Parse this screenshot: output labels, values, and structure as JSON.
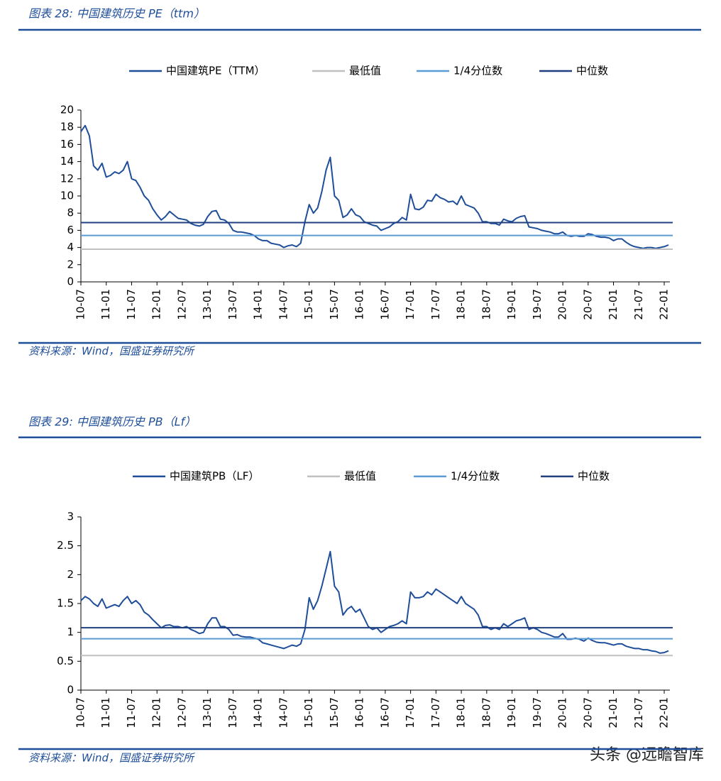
{
  "chart_data": [
    {
      "type": "line",
      "title": "图表 28:  中国建筑历史 PE（ttm）",
      "source": "资料来源：Wind，国盛证券研究所",
      "ylim": [
        0,
        20
      ],
      "yticks": [
        0,
        2,
        4,
        6,
        8,
        10,
        12,
        14,
        16,
        18,
        20
      ],
      "grid": false,
      "legend": "top",
      "x": [
        "10-07",
        "10-08",
        "10-09",
        "10-10",
        "10-11",
        "10-12",
        "11-01",
        "11-02",
        "11-03",
        "11-04",
        "11-05",
        "11-06",
        "11-07",
        "11-08",
        "11-09",
        "11-10",
        "11-11",
        "11-12",
        "12-01",
        "12-02",
        "12-03",
        "12-04",
        "12-05",
        "12-06",
        "12-07",
        "12-08",
        "12-09",
        "12-10",
        "12-11",
        "12-12",
        "13-01",
        "13-02",
        "13-03",
        "13-04",
        "13-05",
        "13-06",
        "13-07",
        "13-08",
        "13-09",
        "13-10",
        "13-11",
        "13-12",
        "14-01",
        "14-02",
        "14-03",
        "14-04",
        "14-05",
        "14-06",
        "14-07",
        "14-08",
        "14-09",
        "14-10",
        "14-11",
        "14-12",
        "15-01",
        "15-02",
        "15-03",
        "15-04",
        "15-05",
        "15-06",
        "15-07",
        "15-08",
        "15-09",
        "15-10",
        "15-11",
        "15-12",
        "16-01",
        "16-02",
        "16-03",
        "16-04",
        "16-05",
        "16-06",
        "16-07",
        "16-08",
        "16-09",
        "16-10",
        "16-11",
        "16-12",
        "17-01",
        "17-02",
        "17-03",
        "17-04",
        "17-05",
        "17-06",
        "17-07",
        "17-08",
        "17-09",
        "17-10",
        "17-11",
        "17-12",
        "18-01",
        "18-02",
        "18-03",
        "18-04",
        "18-05",
        "18-06",
        "18-07",
        "18-08",
        "18-09",
        "18-10",
        "18-11",
        "18-12",
        "19-01",
        "19-02",
        "19-03",
        "19-04",
        "19-05",
        "19-06",
        "19-07",
        "19-08",
        "19-09",
        "19-10",
        "19-11",
        "19-12",
        "20-01",
        "20-02",
        "20-03",
        "20-04",
        "20-05",
        "20-06",
        "20-07",
        "20-08",
        "20-09",
        "20-10",
        "20-11",
        "20-12",
        "21-01",
        "21-02",
        "21-03",
        "21-04",
        "21-05",
        "21-06",
        "21-07",
        "21-08",
        "21-09",
        "21-10",
        "21-11",
        "21-12",
        "22-01",
        "22-02"
      ],
      "series": [
        {
          "name": "中国建筑PE（TTM）",
          "color": "#1f4e99",
          "values": [
            17.5,
            18.2,
            17.0,
            13.5,
            13.0,
            13.8,
            12.2,
            12.4,
            12.8,
            12.6,
            13.0,
            14.0,
            12.0,
            11.8,
            11.0,
            10.0,
            9.5,
            8.5,
            7.8,
            7.2,
            7.6,
            8.2,
            7.8,
            7.4,
            7.3,
            7.2,
            6.8,
            6.6,
            6.5,
            6.7,
            7.6,
            8.2,
            8.3,
            7.3,
            7.2,
            6.8,
            6.0,
            5.8,
            5.8,
            5.7,
            5.6,
            5.4,
            5.0,
            4.8,
            4.8,
            4.5,
            4.4,
            4.3,
            4.0,
            4.2,
            4.3,
            4.1,
            4.5,
            7.0,
            9.0,
            8.0,
            8.6,
            10.5,
            13.0,
            14.5,
            10.0,
            9.5,
            7.5,
            7.8,
            8.5,
            7.8,
            7.6,
            7.0,
            6.8,
            6.6,
            6.5,
            6.0,
            6.2,
            6.4,
            6.8,
            7.0,
            7.5,
            7.2,
            10.2,
            8.5,
            8.4,
            8.7,
            9.5,
            9.4,
            10.2,
            9.8,
            9.6,
            9.3,
            9.4,
            9.0,
            10.0,
            9.0,
            8.8,
            8.6,
            8.0,
            7.0,
            7.0,
            6.8,
            6.8,
            6.6,
            7.3,
            7.1,
            7.0,
            7.4,
            7.6,
            7.7,
            6.4,
            6.3,
            6.2,
            6.0,
            5.9,
            5.8,
            5.6,
            5.6,
            5.8,
            5.4,
            5.3,
            5.4,
            5.3,
            5.3,
            5.6,
            5.5,
            5.3,
            5.2,
            5.2,
            5.1,
            4.8,
            5.0,
            5.0,
            4.6,
            4.3,
            4.1,
            4.0,
            3.9,
            4.0,
            4.0,
            3.9,
            4.0,
            4.1,
            4.3
          ]
        },
        {
          "name": "最低值",
          "color": "#c0c0c0",
          "value": 3.8
        },
        {
          "name": "1/4分位数",
          "color": "#5b9bd5",
          "value": 5.4
        },
        {
          "name": "中位数",
          "color": "#1f3f7f",
          "value": 6.9
        }
      ]
    },
    {
      "type": "line",
      "title": "图表 29:  中国建筑历史 PB（Lf）",
      "source": "资料来源：Wind，国盛证券研究所",
      "ylim": [
        0,
        3
      ],
      "yticks": [
        0,
        0.5,
        1,
        1.5,
        2,
        2.5,
        3
      ],
      "grid": false,
      "legend": "top",
      "x": [
        "10-07",
        "10-08",
        "10-09",
        "10-10",
        "10-11",
        "10-12",
        "11-01",
        "11-02",
        "11-03",
        "11-04",
        "11-05",
        "11-06",
        "11-07",
        "11-08",
        "11-09",
        "11-10",
        "11-11",
        "11-12",
        "12-01",
        "12-02",
        "12-03",
        "12-04",
        "12-05",
        "12-06",
        "12-07",
        "12-08",
        "12-09",
        "12-10",
        "12-11",
        "12-12",
        "13-01",
        "13-02",
        "13-03",
        "13-04",
        "13-05",
        "13-06",
        "13-07",
        "13-08",
        "13-09",
        "13-10",
        "13-11",
        "13-12",
        "14-01",
        "14-02",
        "14-03",
        "14-04",
        "14-05",
        "14-06",
        "14-07",
        "14-08",
        "14-09",
        "14-10",
        "14-11",
        "14-12",
        "15-01",
        "15-02",
        "15-03",
        "15-04",
        "15-05",
        "15-06",
        "15-07",
        "15-08",
        "15-09",
        "15-10",
        "15-11",
        "15-12",
        "16-01",
        "16-02",
        "16-03",
        "16-04",
        "16-05",
        "16-06",
        "16-07",
        "16-08",
        "16-09",
        "16-10",
        "16-11",
        "16-12",
        "17-01",
        "17-02",
        "17-03",
        "17-04",
        "17-05",
        "17-06",
        "17-07",
        "17-08",
        "17-09",
        "17-10",
        "17-11",
        "17-12",
        "18-01",
        "18-02",
        "18-03",
        "18-04",
        "18-05",
        "18-06",
        "18-07",
        "18-08",
        "18-09",
        "18-10",
        "18-11",
        "18-12",
        "19-01",
        "19-02",
        "19-03",
        "19-04",
        "19-05",
        "19-06",
        "19-07",
        "19-08",
        "19-09",
        "19-10",
        "19-11",
        "19-12",
        "20-01",
        "20-02",
        "20-03",
        "20-04",
        "20-05",
        "20-06",
        "20-07",
        "20-08",
        "20-09",
        "20-10",
        "20-11",
        "20-12",
        "21-01",
        "21-02",
        "21-03",
        "21-04",
        "21-05",
        "21-06",
        "21-07",
        "21-08",
        "21-09",
        "21-10",
        "21-11",
        "21-12",
        "22-01",
        "22-02"
      ],
      "series": [
        {
          "name": "中国建筑PB（LF）",
          "color": "#1f4e99",
          "values": [
            1.55,
            1.62,
            1.58,
            1.5,
            1.45,
            1.58,
            1.42,
            1.45,
            1.48,
            1.45,
            1.55,
            1.62,
            1.5,
            1.55,
            1.48,
            1.35,
            1.3,
            1.22,
            1.15,
            1.08,
            1.12,
            1.13,
            1.1,
            1.1,
            1.08,
            1.1,
            1.05,
            1.02,
            0.98,
            1.0,
            1.15,
            1.25,
            1.25,
            1.1,
            1.1,
            1.05,
            0.95,
            0.96,
            0.93,
            0.92,
            0.92,
            0.9,
            0.88,
            0.82,
            0.8,
            0.78,
            0.76,
            0.74,
            0.72,
            0.75,
            0.78,
            0.76,
            0.8,
            1.05,
            1.6,
            1.4,
            1.55,
            1.8,
            2.1,
            2.4,
            1.8,
            1.7,
            1.3,
            1.4,
            1.45,
            1.35,
            1.4,
            1.25,
            1.1,
            1.05,
            1.08,
            1.0,
            1.05,
            1.1,
            1.12,
            1.15,
            1.2,
            1.15,
            1.7,
            1.6,
            1.6,
            1.62,
            1.7,
            1.65,
            1.75,
            1.7,
            1.65,
            1.6,
            1.55,
            1.5,
            1.62,
            1.5,
            1.45,
            1.4,
            1.3,
            1.1,
            1.1,
            1.05,
            1.08,
            1.05,
            1.15,
            1.1,
            1.15,
            1.2,
            1.22,
            1.25,
            1.05,
            1.08,
            1.05,
            1.0,
            0.98,
            0.95,
            0.92,
            0.92,
            0.98,
            0.88,
            0.88,
            0.9,
            0.88,
            0.85,
            0.9,
            0.86,
            0.83,
            0.82,
            0.82,
            0.8,
            0.78,
            0.8,
            0.8,
            0.76,
            0.74,
            0.72,
            0.72,
            0.7,
            0.7,
            0.68,
            0.67,
            0.64,
            0.65,
            0.68
          ]
        },
        {
          "name": "最低值",
          "color": "#c0c0c0",
          "value": 0.6
        },
        {
          "name": "1/4分位数",
          "color": "#5b9bd5",
          "value": 0.89
        },
        {
          "name": "中位数",
          "color": "#1f3f7f",
          "value": 1.08
        }
      ]
    }
  ],
  "watermark": "头条 @远瞻智库"
}
